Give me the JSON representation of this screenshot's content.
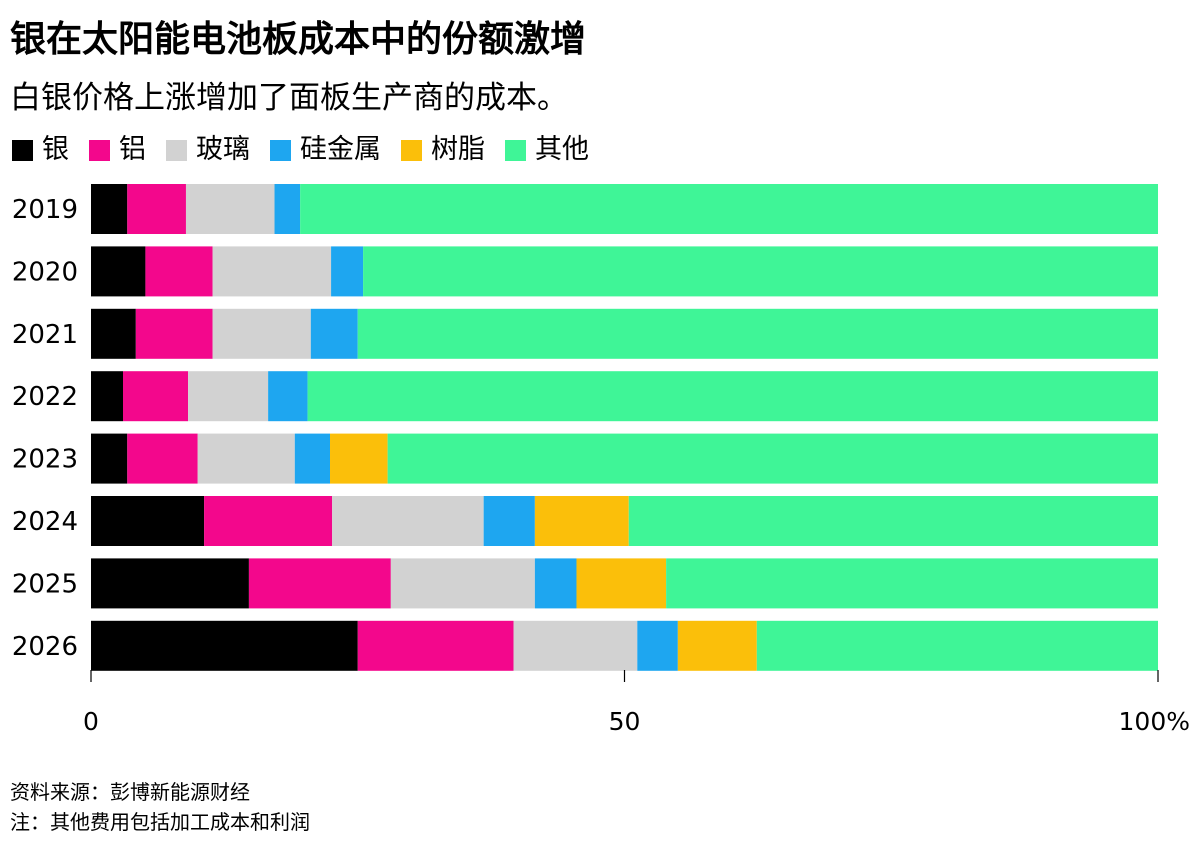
{
  "chart_data": {
    "type": "bar",
    "orientation": "horizontal",
    "stacked": true,
    "title": "银在太阳能电池板成本中的份额激增",
    "subtitle": "白银价格上涨增加了面板生产商的成本。",
    "categories": [
      "2019",
      "2020",
      "2021",
      "2022",
      "2023",
      "2024",
      "2025",
      "2026"
    ],
    "series": [
      {
        "name": "银",
        "color": "#000000",
        "values": [
          3.4,
          5.1,
          4.2,
          3.0,
          3.4,
          10.6,
          14.8,
          25.0
        ]
      },
      {
        "name": "铝",
        "color": "#f3078c",
        "values": [
          5.5,
          6.3,
          7.2,
          6.1,
          6.6,
          12.0,
          13.3,
          14.6
        ]
      },
      {
        "name": "玻璃",
        "color": "#d2d2d2",
        "values": [
          8.3,
          11.1,
          9.2,
          7.5,
          9.1,
          14.2,
          13.5,
          11.6
        ]
      },
      {
        "name": "硅金属",
        "color": "#1ea6f0",
        "values": [
          2.4,
          3.0,
          4.4,
          3.7,
          3.3,
          4.8,
          3.9,
          3.8
        ]
      },
      {
        "name": "树脂",
        "color": "#fbbf0a",
        "values": [
          0,
          0,
          0,
          0,
          5.4,
          8.8,
          8.4,
          7.4
        ]
      },
      {
        "name": "其他",
        "color": "#3ff597",
        "values": [
          80.4,
          74.5,
          75.0,
          79.7,
          72.2,
          49.6,
          46.1,
          37.6
        ]
      }
    ],
    "xlim": [
      0,
      100
    ],
    "xticks": [
      "0",
      "50",
      "100%"
    ],
    "xtick_values": [
      0,
      50,
      100
    ],
    "grid": false,
    "legend_position": "top-left"
  },
  "footnotes": {
    "source": "资料来源：彭博新能源财经",
    "note": "注：其他费用包括加工成本和利润"
  }
}
